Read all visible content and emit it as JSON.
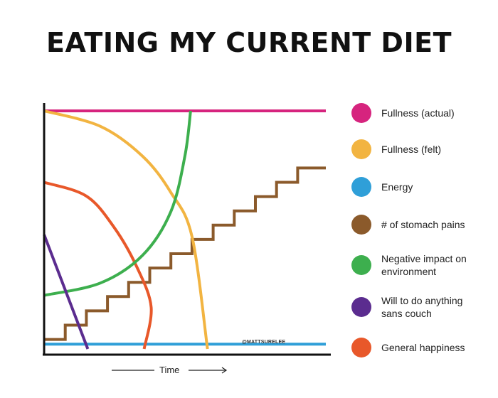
{
  "chart_data": {
    "type": "line",
    "title": "EATING MY CURRENT DIET",
    "xlabel": "Time",
    "ylabel": "",
    "xlim": [
      0,
      10
    ],
    "ylim": [
      0,
      10
    ],
    "grid": false,
    "legend_placement": "right",
    "watermark": "@MATTSURELEE",
    "series": [
      {
        "name": "Fullness (actual)",
        "color": "#d6247e",
        "shape": "line",
        "x": [
          0,
          10
        ],
        "y": [
          10,
          10
        ]
      },
      {
        "name": "Fullness (felt)",
        "color": "#f2b441",
        "shape": "curve",
        "x": [
          0,
          2,
          3.5,
          4.5,
          5.25,
          5.8
        ],
        "y": [
          10,
          9.35,
          8.09,
          6.57,
          4.72,
          0
        ]
      },
      {
        "name": "Energy",
        "color": "#2f9fd8",
        "shape": "line",
        "x": [
          0,
          10
        ],
        "y": [
          0.2,
          0.2
        ]
      },
      {
        "name": "# of stomach pains",
        "color": "#8b5a2b",
        "shape": "steps",
        "x": [
          0,
          0.75,
          0.75,
          1.5,
          1.5,
          2.25,
          2.25,
          3.0,
          3.0,
          3.75,
          3.75,
          4.5,
          4.5,
          5.25,
          5.25,
          6.0,
          6.0,
          6.75,
          6.75,
          7.5,
          7.5,
          8.25,
          8.25,
          9.0,
          9.0,
          10
        ],
        "y": [
          0.4,
          0.4,
          1.0,
          1.0,
          1.6,
          1.6,
          2.2,
          2.2,
          2.8,
          2.8,
          3.4,
          3.4,
          4.0,
          4.0,
          4.6,
          4.6,
          5.2,
          5.2,
          5.8,
          5.8,
          6.4,
          6.4,
          7.0,
          7.0,
          7.6,
          7.6
        ]
      },
      {
        "name": "Negative impact on\nenvironment",
        "color": "#3daf4e",
        "shape": "curve",
        "x": [
          0,
          2,
          3.5,
          4.5,
          5.0,
          5.2
        ],
        "y": [
          2.25,
          2.77,
          3.94,
          5.77,
          8.12,
          10
        ]
      },
      {
        "name": "Will to do anything\nsans couch",
        "color": "#5b2c8f",
        "shape": "line",
        "x": [
          0,
          1.55
        ],
        "y": [
          4.8,
          0
        ]
      },
      {
        "name": "General happiness",
        "color": "#e8582a",
        "shape": "curve",
        "x": [
          0,
          1.5,
          2.5,
          3.3,
          3.8,
          3.55
        ],
        "y": [
          7.0,
          6.42,
          5.08,
          3.42,
          1.75,
          0
        ]
      }
    ]
  }
}
